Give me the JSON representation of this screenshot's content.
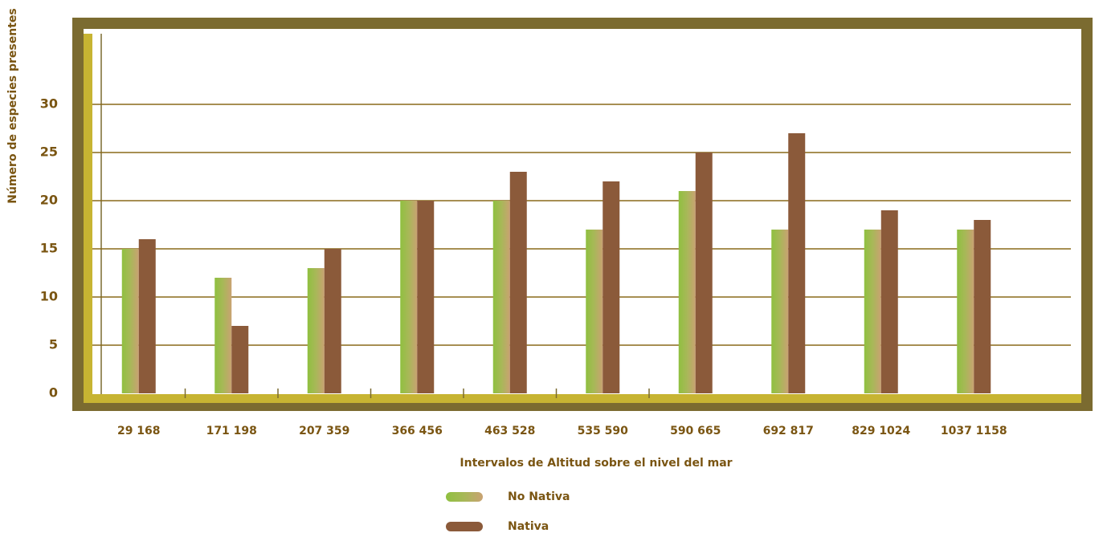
{
  "chart_data": {
    "type": "bar",
    "x_label": "Intervalos de Altitud sobre el nivel del mar",
    "y_label": "Número de especies presentes",
    "categories": [
      "29 168",
      "171 198",
      "207 359",
      "366 456",
      "463 528",
      "535 590",
      "590 665",
      "692 817",
      "829 1024",
      "1037  1158"
    ],
    "series": [
      {
        "name": "No Nativa",
        "color": "#93bf48",
        "values": [
          15,
          12,
          13,
          20,
          20,
          17,
          21,
          17,
          17,
          17
        ]
      },
      {
        "name": "Nativa",
        "color": "#8b5a3a",
        "values": [
          16,
          7,
          15,
          20,
          23,
          22,
          25,
          27,
          19,
          18
        ]
      }
    ],
    "ylim": [
      0,
      37.5
    ],
    "yticks": [
      0,
      5,
      10,
      15,
      20,
      25,
      30
    ],
    "grid": true
  }
}
